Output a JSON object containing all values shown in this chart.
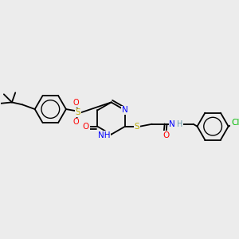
{
  "bg_color": "#ececec",
  "bond_color": "#000000",
  "atom_colors": {
    "N": "#0000ff",
    "O": "#ff0000",
    "S": "#bbaa00",
    "Cl": "#00bb00",
    "C": "#000000",
    "H": "#6699aa"
  },
  "figsize": [
    3.0,
    3.0
  ],
  "dpi": 100,
  "lw": 1.3,
  "fontsize": 7.5
}
